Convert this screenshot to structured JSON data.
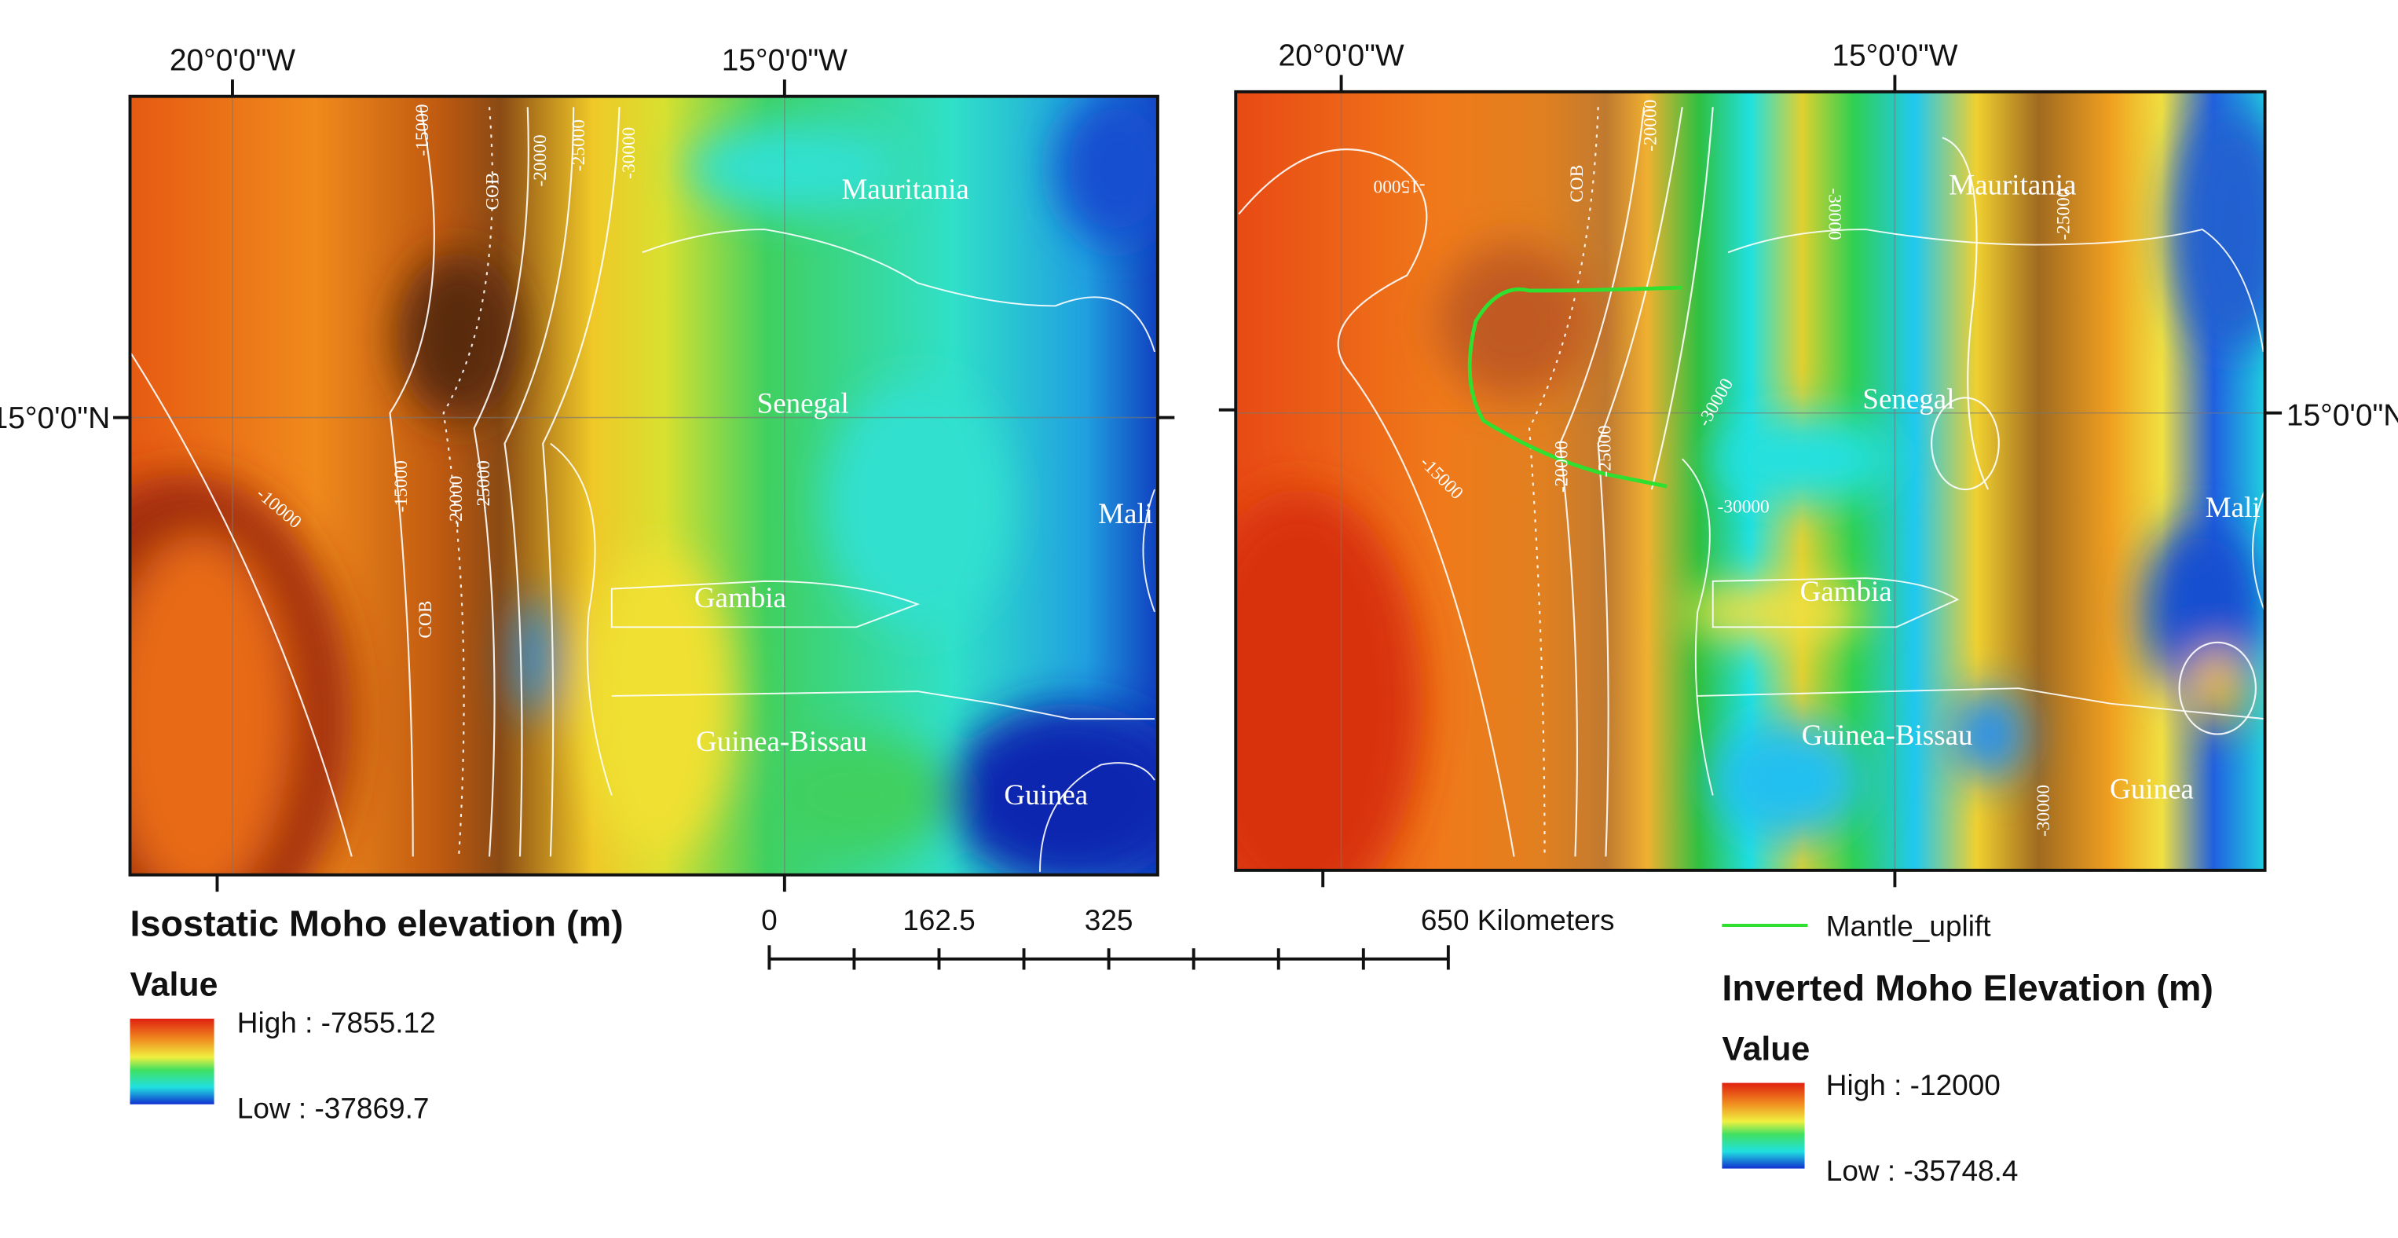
{
  "left_map": {
    "title": "Isostatic Moho elevation (m)",
    "legend_title": "Value",
    "legend_high": "High : -7855.12",
    "legend_low": "Low : -37869.7",
    "top_labels": [
      "20°0'0\"W",
      "15°0'0\"W"
    ],
    "side_label": "15°0'0\"N",
    "countries": [
      "Mauritania",
      "Senegal",
      "Mali",
      "Gambia",
      "Guinea-Bissau",
      "Guinea"
    ],
    "contour_labels": [
      "-15000",
      "-20000",
      "-25000",
      "-30000",
      "-10000",
      "COB",
      "-25000",
      "-20000",
      "-15000",
      "COB"
    ]
  },
  "right_map": {
    "title": "Inverted Moho Elevation (m)",
    "legend_title": "Value",
    "legend_high": "High : -12000",
    "legend_low": "Low : -35748.4",
    "legend_line": "Mantle_uplift",
    "top_labels": [
      "20°0'0\"W",
      "15°0'0\"W"
    ],
    "side_label": "15°0'0\"N",
    "countries": [
      "Mauritania",
      "Senegal",
      "Mali",
      "Gambia",
      "Guinea-Bissau",
      "Guinea"
    ],
    "contour_labels": [
      "-15000",
      "COB",
      "-20000",
      "-15000",
      "-20000",
      "-25000",
      "-30000",
      "-30000",
      "-25000",
      "-30000",
      "-30000"
    ]
  },
  "scale_bar": {
    "labels": [
      "0",
      "162.5",
      "325",
      "650 Kilometers"
    ]
  }
}
